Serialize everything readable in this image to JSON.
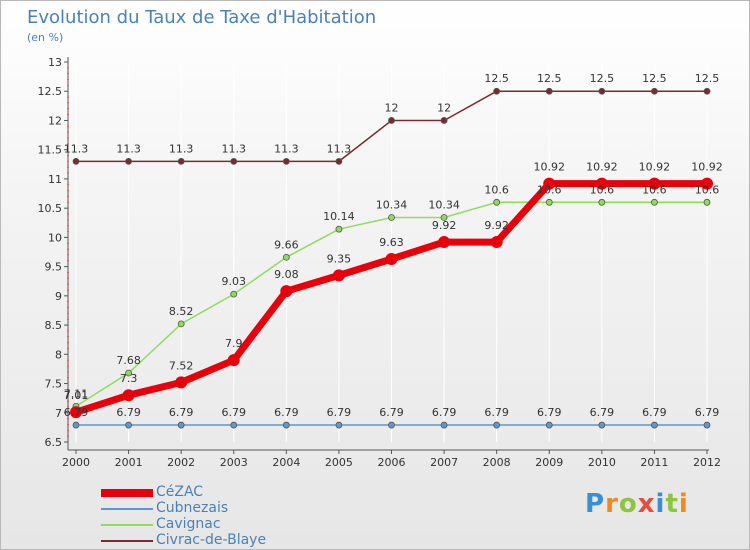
{
  "chart_data": {
    "type": "line",
    "title": "Evolution du Taux de Taxe d'Habitation",
    "subtitle": "(en %)",
    "xlabel": "",
    "ylabel": "",
    "x": [
      "2000",
      "2001",
      "2002",
      "2003",
      "2004",
      "2005",
      "2006",
      "2007",
      "2008",
      "2009",
      "2010",
      "2011",
      "2012"
    ],
    "ylim": [
      6.5,
      13
    ],
    "yticks": [
      "6.5",
      "7",
      "7.5",
      "8",
      "8.5",
      "9",
      "9.5",
      "10",
      "10.5",
      "11",
      "11.5",
      "12",
      "12.5",
      "13"
    ],
    "grid": "vertical",
    "legend_position": "bottom-left",
    "series": [
      {
        "name": "CéZAC",
        "color": "#e8000b",
        "values": [
          7.01,
          7.3,
          7.52,
          7.9,
          9.08,
          9.35,
          9.63,
          9.92,
          9.92,
          10.92,
          10.92,
          10.92,
          10.92
        ],
        "labels": [
          "7.01",
          "7.3",
          "7.52",
          "7.9",
          "9.08",
          "9.35",
          "9.63",
          "9.92",
          "9.92",
          "10.92",
          "10.92",
          "10.92",
          "10.92"
        ]
      },
      {
        "name": "Cubnezais",
        "color": "#5b9ad0",
        "values": [
          6.79,
          6.79,
          6.79,
          6.79,
          6.79,
          6.79,
          6.79,
          6.79,
          6.79,
          6.79,
          6.79,
          6.79,
          6.79
        ],
        "labels": [
          "6.79",
          "6.79",
          "6.79",
          "6.79",
          "6.79",
          "6.79",
          "6.79",
          "6.79",
          "6.79",
          "6.79",
          "6.79",
          "6.79",
          "6.79"
        ]
      },
      {
        "name": "Cavignac",
        "color": "#8fdc5a",
        "values": [
          7.11,
          7.68,
          8.52,
          9.03,
          9.66,
          10.14,
          10.34,
          10.34,
          10.6,
          10.6,
          10.6,
          10.6,
          10.6
        ],
        "labels": [
          "7.11",
          "7.68",
          "8.52",
          "9.03",
          "9.66",
          "10.14",
          "10.34",
          "10.34",
          "10.6",
          "10.6",
          "10.6",
          "10.6",
          "10.6"
        ]
      },
      {
        "name": "Civrac-de-Blaye",
        "color": "#7a2a30",
        "values": [
          11.3,
          11.3,
          11.3,
          11.3,
          11.3,
          11.3,
          12,
          12,
          12.5,
          12.5,
          12.5,
          12.5,
          12.5
        ],
        "labels": [
          "11.3",
          "11.3",
          "11.3",
          "11.3",
          "11.3",
          "11.3",
          "12",
          "12",
          "12.5",
          "12.5",
          "12.5",
          "12.5",
          "12.5"
        ]
      }
    ]
  },
  "brand": {
    "letters": [
      "P",
      "r",
      "o",
      "x",
      "i",
      "t",
      "i"
    ],
    "colors": [
      "#3a8fd0",
      "#f08a1c",
      "#8cc63f",
      "#e84c3d",
      "#3a8fd0",
      "#8cc63f",
      "#f08a1c"
    ]
  }
}
